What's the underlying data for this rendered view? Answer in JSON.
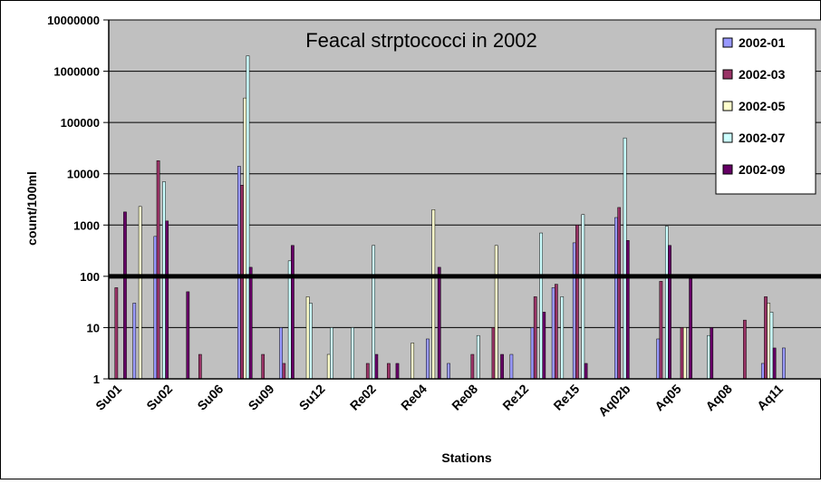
{
  "chart_data": {
    "type": "bar",
    "title": "Feacal strptococci in 2002",
    "xlabel": "Stations",
    "ylabel": "count/100ml",
    "yscale": "log",
    "ylim": [
      1,
      10000000
    ],
    "yticks": [
      "1",
      "10",
      "100",
      "1000",
      "10000",
      "100000",
      "1000000",
      "10000000"
    ],
    "grid": true,
    "legend_position": "top-right",
    "reference_line": 100,
    "tick_labels": [
      "Su01",
      "Su02",
      "Su06",
      "Su09",
      "Su12",
      "Re02",
      "Re04",
      "Re08",
      "Re12",
      "Re15",
      "Aq02b",
      "Aq05",
      "Aq08",
      "Aq11"
    ],
    "series": [
      {
        "name": "2002-01",
        "color": "#9999ff"
      },
      {
        "name": "2002-03",
        "color": "#993366"
      },
      {
        "name": "2002-05",
        "color": "#ffffcc"
      },
      {
        "name": "2002-07",
        "color": "#ccffff"
      },
      {
        "name": "2002-09",
        "color": "#660066"
      }
    ],
    "other_series_color": "#000000",
    "bar_values": [
      [
        1,
        60,
        1,
        1,
        1800
      ],
      [
        30,
        1,
        2300,
        1,
        1
      ],
      [
        600,
        18000,
        1,
        7000,
        1200
      ],
      [
        1,
        1,
        1,
        1,
        50
      ],
      [
        1,
        3,
        1,
        1,
        1
      ],
      [
        1,
        1,
        1,
        1,
        1
      ],
      [
        14000,
        6000,
        300000,
        2000000,
        150
      ],
      [
        1,
        3,
        1,
        1,
        1
      ],
      [
        10,
        2,
        1,
        200,
        400
      ],
      [
        1,
        1,
        40,
        30,
        1
      ],
      [
        1,
        1,
        3,
        10,
        1
      ],
      [
        1,
        1,
        1,
        10,
        1
      ],
      [
        1,
        2,
        1,
        400,
        3
      ],
      [
        1,
        2,
        1,
        1,
        2
      ],
      [
        1,
        1,
        5,
        1,
        1
      ],
      [
        6,
        1,
        2000,
        1,
        150
      ],
      [
        2,
        1,
        1,
        1,
        1
      ],
      [
        1,
        3,
        1,
        7,
        1
      ],
      [
        1,
        10,
        400,
        1,
        3
      ],
      [
        3,
        1,
        1,
        1,
        1
      ],
      [
        10,
        40,
        1,
        700,
        20
      ],
      [
        60,
        70,
        1,
        40,
        1
      ],
      [
        450,
        1000,
        1,
        1600,
        2
      ],
      [
        1,
        1,
        1,
        1,
        1
      ],
      [
        1400,
        2200,
        1,
        50000,
        500
      ],
      [
        1,
        1,
        1,
        1,
        1
      ],
      [
        6,
        80,
        1,
        950,
        400
      ],
      [
        1,
        10,
        10,
        1,
        90
      ],
      [
        1,
        1,
        1,
        7,
        10
      ],
      [
        1,
        1,
        1,
        1,
        1
      ],
      [
        1,
        14,
        1,
        1,
        1
      ],
      [
        2,
        40,
        30,
        20,
        4
      ],
      [
        4,
        1,
        1,
        1,
        1
      ],
      [
        1,
        1,
        1,
        1,
        1
      ]
    ]
  }
}
